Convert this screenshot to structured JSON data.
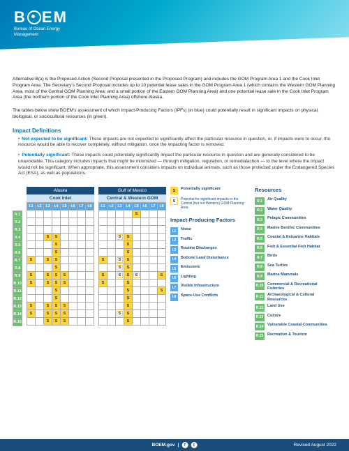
{
  "header": {
    "logo_text_left": "B",
    "logo_text_right": "EM",
    "logo_sub1": "Bureau of Ocean Energy",
    "logo_sub2": "Management"
  },
  "para1": "Alternative B(a) is the Proposed Action (Second Proposal presented in the Proposed Program) and includes the GOM Program Area 1 and the Cook Inlet Program Area. The Secretary's Second Proposal includes up to 10 potential lease sales in the GOM Program Area 1 (which contains the Western GOM Planning Area, most of the Central GOM Planning Area, and a small portion of the Eastern GOM Planning Area) and one potential lease sale in the Cook Inlet Program Area (the northern portion of the Cook Inlet Planning Area) offshore Alaska.",
  "para2": "The tables below show BOEM's assessment of which Impact-Producing Factors (IPFs) (in blue) could potentially result in significant impacts on physical, biological, or sociocultural resources (in green).",
  "defs_title": "Impact Definitions",
  "def1_term": "Not expected to be significant:",
  "def1_body": " These impacts are not expected to significantly affect the particular resource in question, or, if impacts were to occur, the resource would be able to recover completely, without mitigation, once the impacting factor is removed.",
  "def2_term": "Potentially significant:",
  "def2_body": " These impacts could potentially significantly impact the particular resource in question and are generally considered to be unavoidable. This category includes impacts that might be minimized — through mitigation, regulation, or remedialaction — to the level where the impact would not be significant. When appropriate, this assessment considers impacts on individual animals, such as those protected under the Endangered Species Act (ESA), as well as populations.",
  "alaska": {
    "region": "Alaska",
    "area": "Cook Inlet"
  },
  "gom": {
    "region": "Gulf of Mexico",
    "area": "Central & Western GOM"
  },
  "cols": [
    "I.1",
    "I.2",
    "I.3",
    "I.4",
    "I.5",
    "I.6",
    "I.7",
    "I.8"
  ],
  "rows": [
    "R.1",
    "R.2",
    "R.3",
    "R.4",
    "R.5",
    "R.6",
    "R.7",
    "R.8",
    "R.9",
    "R.10",
    "R.11",
    "R.12",
    "R.13",
    "R.14",
    "R.15"
  ],
  "cells_alaska": {
    "R.4": {
      "I.3": "S",
      "I.4": "S"
    },
    "R.5": {
      "I.4": "S"
    },
    "R.6": {
      "I.4": "S"
    },
    "R.7": {
      "I.1": "S",
      "I.3": "S",
      "I.4": "S"
    },
    "R.8": {
      "I.4": "S"
    },
    "R.9": {
      "I.1": "S",
      "I.3": "S",
      "I.4": "S",
      "I.5": "S"
    },
    "R.10": {
      "I.1": "S",
      "I.3": "S",
      "I.4": "S",
      "I.5": "S"
    },
    "R.11": {
      "I.4": "S"
    },
    "R.12": {
      "I.4": "S"
    },
    "R.13": {
      "I.1": "S",
      "I.3": "S",
      "I.4": "S",
      "I.5": "S"
    },
    "R.14": {
      "I.1": "S",
      "I.3": "S",
      "I.4": "S",
      "I.5": "S"
    },
    "R.15": {
      "I.3": "S",
      "I.4": "S",
      "I.5": "S"
    }
  },
  "cells_gom": {
    "R.1": {
      "I.5": "S"
    },
    "R.4": {
      "I.3": "s",
      "I.4": "S"
    },
    "R.5": {
      "I.4": "S"
    },
    "R.6": {
      "I.4": "S"
    },
    "R.7": {
      "I.1": "S",
      "I.3": "s",
      "I.4": "S"
    },
    "R.8": {
      "I.3": "s",
      "I.4": "S"
    },
    "R.9": {
      "I.1": "S",
      "I.3": "s",
      "I.4": "S",
      "I.5": "s",
      "I.8": "S"
    },
    "R.10": {
      "I.1": "S",
      "I.4": "S"
    },
    "R.11": {
      "I.4": "S",
      "I.8": "S"
    },
    "R.12": {
      "I.4": "S"
    },
    "R.13": {
      "I.4": "S"
    },
    "R.14": {
      "I.3": "s",
      "I.4": "S"
    },
    "R.15": {
      "I.4": "S"
    }
  },
  "legend": {
    "s_label": "Potentially significant",
    "s_out_label": "Potential for significant impacts in the Central (but not Western) GOM Planning Area",
    "factors_title": "Impact-Producing Factors",
    "resources_title": "Resources"
  },
  "factors": [
    {
      "code": "I.1",
      "label": "Noise"
    },
    {
      "code": "I.2",
      "label": "Traffic"
    },
    {
      "code": "I.3",
      "label": "Routine Discharges"
    },
    {
      "code": "I.4",
      "label": "Bottom/ Land Disturbance"
    },
    {
      "code": "I.5",
      "label": "Emissions"
    },
    {
      "code": "I.6",
      "label": "Lighting"
    },
    {
      "code": "I.7",
      "label": "Visible Infrastructure"
    },
    {
      "code": "I.8",
      "label": "Space-Use Conflicts"
    }
  ],
  "resources": [
    {
      "code": "R.1",
      "label": "Air Quality"
    },
    {
      "code": "R.2",
      "label": "Water Quality"
    },
    {
      "code": "R.3",
      "label": "Pelagic Communities"
    },
    {
      "code": "R.4",
      "label": "Marine Benthic Communities"
    },
    {
      "code": "R.5",
      "label": "Coastal & Estuarine Habitats"
    },
    {
      "code": "R.6",
      "label": "Fish & Essential Fish Habitat"
    },
    {
      "code": "R.7",
      "label": "Birds"
    },
    {
      "code": "R.8",
      "label": "Sea Turtles"
    },
    {
      "code": "R.9",
      "label": "Marine Mammals"
    },
    {
      "code": "R.10",
      "label": "Commercial & Recreational Fisheries"
    },
    {
      "code": "R.11",
      "label": "Archaeological & Cultural Resources"
    },
    {
      "code": "R.12",
      "label": "Land Use"
    },
    {
      "code": "R.13",
      "label": "Culture"
    },
    {
      "code": "R.14",
      "label": "Vulnerable Coastal Communities"
    },
    {
      "code": "R.15",
      "label": "Recreation & Tourism"
    }
  ],
  "footer": {
    "site": "BOEM.gov",
    "revised": "Revised August 2022"
  }
}
